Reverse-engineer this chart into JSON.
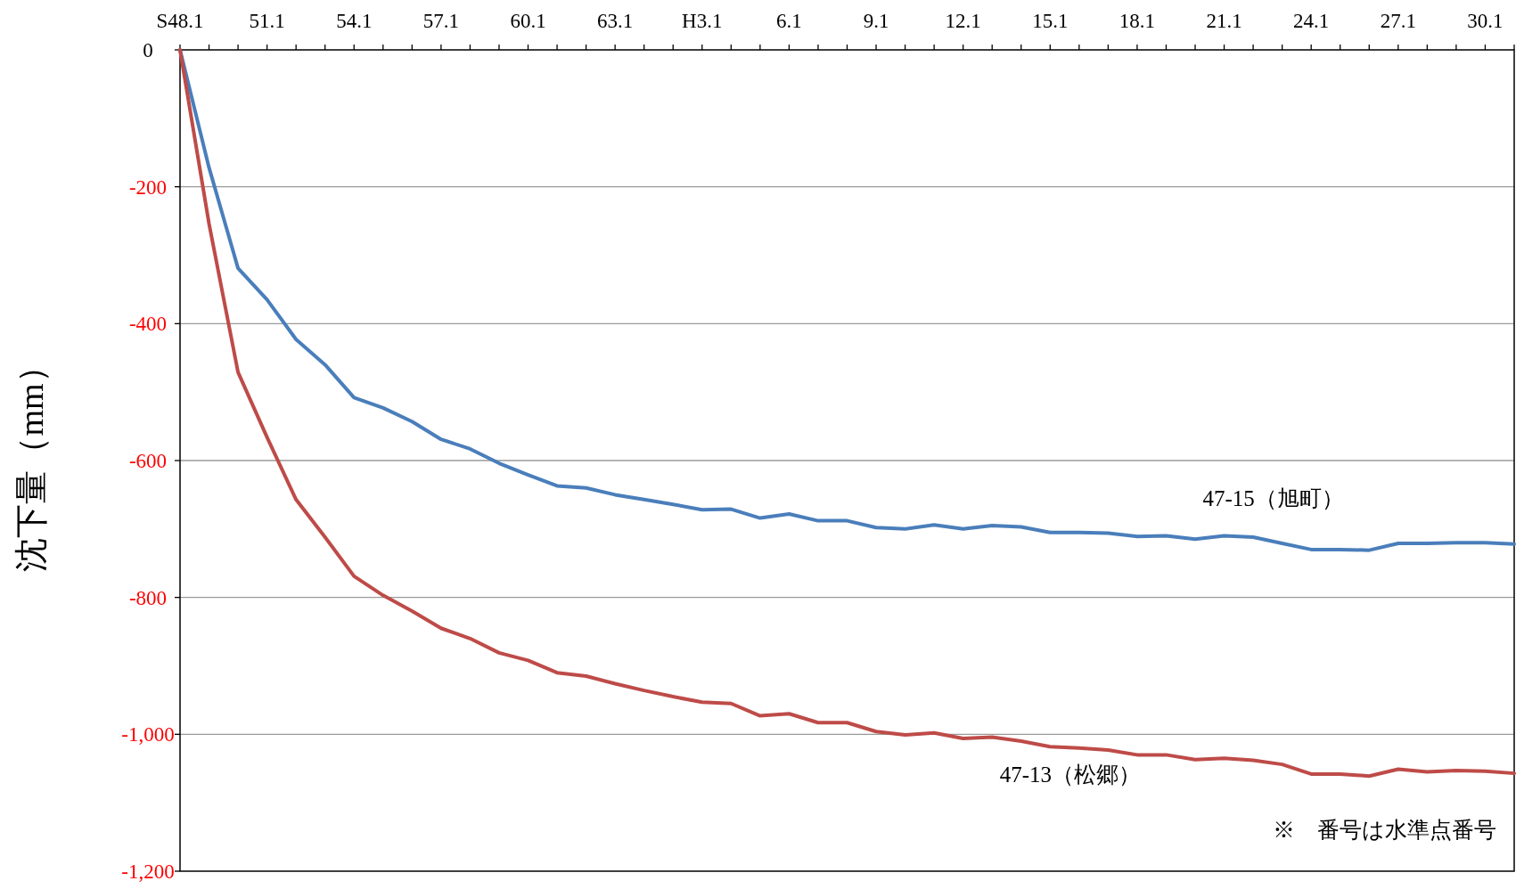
{
  "chart_data": {
    "type": "line",
    "ylabel": "沈下量（mm）",
    "annotations": [
      "※　番号は水準点番号"
    ],
    "categories": [
      "S48.1",
      null,
      null,
      "51.1",
      null,
      null,
      "54.1",
      null,
      null,
      "57.1",
      null,
      null,
      "60.1",
      null,
      null,
      "63.1",
      null,
      null,
      "H3.1",
      null,
      null,
      "6.1",
      null,
      null,
      "9.1",
      null,
      null,
      "12.1",
      null,
      null,
      "15.1",
      null,
      null,
      "18.1",
      null,
      null,
      "21.1",
      null,
      null,
      "24.1",
      null,
      null,
      "27.1",
      null,
      null,
      "30.1",
      null
    ],
    "series": [
      {
        "name": "47-15（旭町）",
        "color": "#4a7ebb",
        "values": [
          0,
          -172,
          -319,
          -365,
          -423,
          -460,
          -508,
          -523,
          -543,
          -569,
          -583,
          -604,
          -621,
          -637,
          -640,
          -650,
          -657,
          -664,
          -672,
          -671,
          -684,
          -678,
          -688,
          -688,
          -698,
          -700,
          -694,
          -700,
          -695,
          -697,
          -705,
          -705,
          -706,
          -711,
          -710,
          -715,
          -710,
          -712,
          -721,
          -730,
          -730,
          -731,
          -721,
          -721,
          -720,
          -720,
          -722
        ]
      },
      {
        "name": "47-13（松郷）",
        "color": "#be4b48",
        "values": [
          0,
          -254,
          -471,
          -566,
          -657,
          -712,
          -769,
          -797,
          -820,
          -845,
          -860,
          -881,
          -892,
          -910,
          -915,
          -926,
          -936,
          -945,
          -953,
          -955,
          -973,
          -970,
          -983,
          -983,
          -996,
          -1001,
          -998,
          -1006,
          -1004,
          -1010,
          -1018,
          -1020,
          -1023,
          -1030,
          -1030,
          -1037,
          -1035,
          -1038,
          -1044,
          -1058,
          -1058,
          -1061,
          -1051,
          -1055,
          -1053,
          -1054,
          -1057
        ]
      }
    ],
    "ylim": [
      -1200,
      0
    ],
    "yticks": [
      0,
      {
        "value": -200,
        "label": "-200"
      },
      {
        "value": -400,
        "label": "-400"
      },
      {
        "value": -600,
        "label": "-600"
      },
      {
        "value": -800,
        "label": "-800"
      },
      {
        "value": -1000,
        "label": "-1,000"
      },
      {
        "value": -1200,
        "label": "-1,200"
      }
    ],
    "grid": "y",
    "legend": false,
    "marker": "none",
    "line_style": "solid"
  }
}
